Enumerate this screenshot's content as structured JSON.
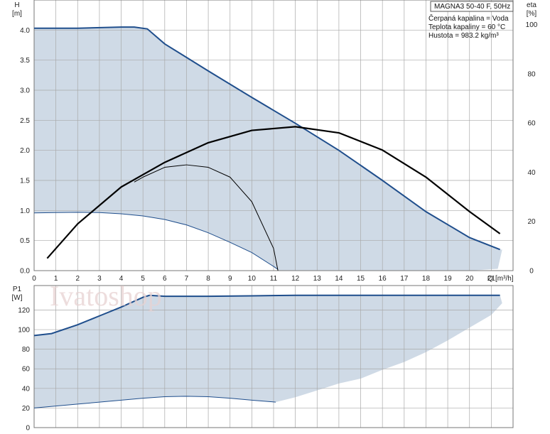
{
  "colors": {
    "envelope_fill": "#cfdae6",
    "envelope_line": "#1f4e8c",
    "eta_line": "#000000",
    "grid": "#a9a9a9"
  },
  "watermark": "Ivatoshop",
  "info": {
    "model": "MAGNA3 50-40 F, 50Hz",
    "lines": [
      "Čerpaná kapalina = Voda",
      "Teplota kapaliny = 60 °C",
      "Hustota = 983.2 kg/m³"
    ]
  },
  "chart_data": [
    {
      "type": "area",
      "panel": "head",
      "ylabel": "H",
      "yunit": "[m]",
      "y2label": "eta",
      "y2unit": "[%]",
      "xlabel": "Q",
      "xunit": "[m³/h]",
      "xlim": [
        0,
        22
      ],
      "ylim": [
        0,
        4.5
      ],
      "y2lim": [
        0,
        110
      ],
      "x_ticks": [
        0,
        1,
        2,
        3,
        4,
        5,
        6,
        7,
        8,
        9,
        10,
        11,
        12,
        13,
        14,
        15,
        16,
        17,
        18,
        19,
        20,
        21
      ],
      "y_ticks": [
        "0.0",
        "0.5",
        "1.0",
        "1.5",
        "2.0",
        "2.5",
        "3.0",
        "3.5",
        "4.0"
      ],
      "y_tick_values": [
        0,
        0.5,
        1,
        1.5,
        2,
        2.5,
        3,
        3.5,
        4
      ],
      "y2_ticks": [
        0,
        20,
        40,
        60,
        80,
        100
      ],
      "grid": true,
      "series": [
        {
          "kind": "envelope",
          "upper": {
            "x": [
              0,
              2,
              4,
              4.6,
              5.2,
              6,
              8,
              10,
              12,
              14,
              16,
              18,
              20,
              21.4
            ],
            "y": [
              4.03,
              4.03,
              4.05,
              4.05,
              4.02,
              3.77,
              3.32,
              2.88,
              2.45,
              2.0,
              1.5,
              0.98,
              0.55,
              0.35
            ]
          },
          "lower": {
            "x": [
              0,
              1,
              2,
              3,
              4,
              5,
              6,
              7,
              8,
              9,
              10,
              11,
              11.2
            ],
            "y": [
              0.96,
              0.965,
              0.97,
              0.965,
              0.945,
              0.91,
              0.85,
              0.76,
              0.63,
              0.47,
              0.3,
              0.07,
              0.02
            ]
          },
          "right_lower": {
            "x": [
              11.2,
              14,
              16,
              18,
              20,
              21.3,
              21.5
            ],
            "y": [
              0.0,
              0.0,
              0.0,
              0.0,
              0.0,
              0.03,
              0.35
            ]
          }
        },
        {
          "kind": "eta-max",
          "x": [
            0.6,
            2,
            4,
            6,
            8,
            10,
            12,
            14,
            16,
            18,
            19,
            20,
            21.4
          ],
          "y": [
            5,
            19,
            34,
            44,
            52,
            57,
            58.5,
            56,
            49,
            38,
            31,
            24,
            15
          ]
        },
        {
          "kind": "eta-min",
          "x": [
            4.6,
            5,
            6,
            7,
            8,
            9,
            10,
            11,
            11.2
          ],
          "y": [
            36,
            38,
            42,
            43,
            42,
            38,
            28,
            9,
            0
          ]
        }
      ]
    },
    {
      "type": "area",
      "panel": "power",
      "ylabel": "P1",
      "yunit": "[W]",
      "xlim": [
        0,
        22
      ],
      "ylim": [
        0,
        145
      ],
      "y_ticks": [
        0,
        20,
        40,
        60,
        80,
        100,
        120
      ],
      "grid": true,
      "series": [
        {
          "kind": "envelope",
          "upper": {
            "x": [
              0,
              0.8,
              2,
              3,
              4,
              5,
              5.3,
              6,
              8,
              10,
              12,
              14,
              16,
              18,
              20,
              21.4
            ],
            "y": [
              94,
              96,
              105,
              114,
              123,
              133,
              135,
              134,
              134,
              134.5,
              135,
              135,
              135,
              135,
              135,
              135
            ]
          },
          "lower": {
            "x": [
              0,
              1,
              2,
              3,
              4,
              5,
              6,
              7,
              8,
              9,
              10,
              11.1
            ],
            "y": [
              20,
              22,
              24,
              26,
              28,
              30,
              31.5,
              32,
              31.5,
              30,
              28,
              26
            ]
          },
          "right_lower": {
            "x": [
              11.1,
              12,
              13,
              14,
              15,
              16,
              17,
              18,
              19,
              20,
              21,
              21.5
            ],
            "y": [
              26,
              31,
              38,
              45,
              50,
              59,
              67,
              77,
              89,
              102,
              115,
              127
            ]
          }
        }
      ]
    }
  ]
}
